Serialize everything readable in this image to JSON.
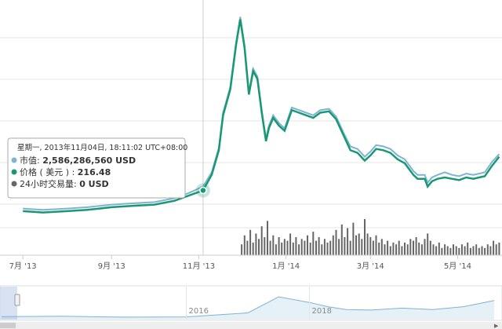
{
  "chart_data": {
    "type": "line",
    "title": "",
    "xlabel": "",
    "ylabel": "",
    "x_axis": {
      "ticks": [
        "7月 '13",
        "9月 '13",
        "11月 '13",
        "1月 '14",
        "3月 '14",
        "5月 '14"
      ]
    },
    "grid": true,
    "legend": "none",
    "series": [
      {
        "role": "market-cap",
        "color": "#7fb3d5",
        "points": [
          [
            "2013-07-01",
            0.36
          ],
          [
            "2013-07-15",
            0.35
          ],
          [
            "2013-08-01",
            0.36
          ],
          [
            "2013-08-15",
            0.37
          ],
          [
            "2013-09-01",
            0.39
          ],
          [
            "2013-09-15",
            0.4
          ],
          [
            "2013-10-01",
            0.41
          ],
          [
            "2013-10-15",
            0.44
          ],
          [
            "2013-10-25",
            0.48
          ],
          [
            "2013-11-04",
            0.53
          ],
          [
            "2013-11-10",
            0.64
          ],
          [
            "2013-11-15",
            0.83
          ],
          [
            "2013-11-18",
            1.1
          ],
          [
            "2013-11-20",
            1.18
          ],
          [
            "2013-11-23",
            1.3
          ],
          [
            "2013-11-27",
            1.64
          ],
          [
            "2013-11-30",
            1.84
          ],
          [
            "2013-12-03",
            1.62
          ],
          [
            "2013-12-06",
            1.26
          ],
          [
            "2013-12-09",
            1.44
          ],
          [
            "2013-12-12",
            1.38
          ],
          [
            "2013-12-15",
            1.12
          ],
          [
            "2013-12-18",
            0.9
          ],
          [
            "2013-12-20",
            1.0
          ],
          [
            "2013-12-23",
            1.08
          ],
          [
            "2013-12-27",
            1.02
          ],
          [
            "2013-12-31",
            0.98
          ],
          [
            "2014-01-05",
            1.14
          ],
          [
            "2014-01-10",
            1.12
          ],
          [
            "2014-01-15",
            1.1
          ],
          [
            "2014-01-20",
            1.08
          ],
          [
            "2014-01-25",
            1.12
          ],
          [
            "2014-01-31",
            1.13
          ],
          [
            "2014-02-05",
            1.07
          ],
          [
            "2014-02-10",
            0.95
          ],
          [
            "2014-02-15",
            0.84
          ],
          [
            "2014-02-20",
            0.82
          ],
          [
            "2014-02-25",
            0.76
          ],
          [
            "2014-03-01",
            0.8
          ],
          [
            "2014-03-05",
            0.85
          ],
          [
            "2014-03-10",
            0.84
          ],
          [
            "2014-03-15",
            0.82
          ],
          [
            "2014-03-20",
            0.77
          ],
          [
            "2014-03-25",
            0.74
          ],
          [
            "2014-03-31",
            0.65
          ],
          [
            "2014-04-03",
            0.62
          ],
          [
            "2014-04-08",
            0.62
          ],
          [
            "2014-04-10",
            0.56
          ],
          [
            "2014-04-13",
            0.6
          ],
          [
            "2014-04-17",
            0.62
          ],
          [
            "2014-04-22",
            0.64
          ],
          [
            "2014-04-27",
            0.62
          ],
          [
            "2014-05-02",
            0.61
          ],
          [
            "2014-05-07",
            0.63
          ],
          [
            "2014-05-12",
            0.62
          ],
          [
            "2014-05-16",
            0.63
          ],
          [
            "2014-05-20",
            0.64
          ],
          [
            "2014-05-25",
            0.72
          ],
          [
            "2014-05-30",
            0.78
          ]
        ]
      },
      {
        "role": "price",
        "color": "#1a9874",
        "points": [
          [
            "2013-07-01",
            0.34
          ],
          [
            "2013-07-15",
            0.33
          ],
          [
            "2013-08-01",
            0.34
          ],
          [
            "2013-08-15",
            0.35
          ],
          [
            "2013-09-01",
            0.37
          ],
          [
            "2013-09-15",
            0.38
          ],
          [
            "2013-10-01",
            0.39
          ],
          [
            "2013-10-15",
            0.42
          ],
          [
            "2013-10-25",
            0.46
          ],
          [
            "2013-11-04",
            0.5
          ],
          [
            "2013-11-10",
            0.62
          ],
          [
            "2013-11-15",
            0.81
          ],
          [
            "2013-11-18",
            1.08
          ],
          [
            "2013-11-20",
            1.16
          ],
          [
            "2013-11-23",
            1.28
          ],
          [
            "2013-11-27",
            1.62
          ],
          [
            "2013-11-30",
            1.82
          ],
          [
            "2013-12-03",
            1.6
          ],
          [
            "2013-12-06",
            1.24
          ],
          [
            "2013-12-09",
            1.42
          ],
          [
            "2013-12-12",
            1.36
          ],
          [
            "2013-12-15",
            1.1
          ],
          [
            "2013-12-18",
            0.88
          ],
          [
            "2013-12-20",
            0.98
          ],
          [
            "2013-12-23",
            1.06
          ],
          [
            "2013-12-27",
            1.0
          ],
          [
            "2013-12-31",
            0.96
          ],
          [
            "2014-01-05",
            1.12
          ],
          [
            "2014-01-10",
            1.1
          ],
          [
            "2014-01-15",
            1.08
          ],
          [
            "2014-01-20",
            1.06
          ],
          [
            "2014-01-25",
            1.1
          ],
          [
            "2014-01-31",
            1.11
          ],
          [
            "2014-02-05",
            1.05
          ],
          [
            "2014-02-10",
            0.93
          ],
          [
            "2014-02-15",
            0.81
          ],
          [
            "2014-02-20",
            0.79
          ],
          [
            "2014-02-25",
            0.73
          ],
          [
            "2014-03-01",
            0.77
          ],
          [
            "2014-03-05",
            0.82
          ],
          [
            "2014-03-10",
            0.81
          ],
          [
            "2014-03-15",
            0.79
          ],
          [
            "2014-03-20",
            0.74
          ],
          [
            "2014-03-25",
            0.71
          ],
          [
            "2014-03-31",
            0.62
          ],
          [
            "2014-04-03",
            0.59
          ],
          [
            "2014-04-08",
            0.59
          ],
          [
            "2014-04-10",
            0.53
          ],
          [
            "2014-04-13",
            0.57
          ],
          [
            "2014-04-17",
            0.59
          ],
          [
            "2014-04-22",
            0.6
          ],
          [
            "2014-04-27",
            0.59
          ],
          [
            "2014-05-02",
            0.58
          ],
          [
            "2014-05-07",
            0.6
          ],
          [
            "2014-05-12",
            0.59
          ],
          [
            "2014-05-16",
            0.6
          ],
          [
            "2014-05-20",
            0.61
          ],
          [
            "2014-05-25",
            0.69
          ],
          [
            "2014-05-30",
            0.76
          ]
        ]
      }
    ],
    "volume": {
      "color": "#666666",
      "points": [
        [
          "2013-12-01",
          0.3
        ],
        [
          "2013-12-03",
          0.55
        ],
        [
          "2013-12-05",
          0.4
        ],
        [
          "2013-12-07",
          0.7
        ],
        [
          "2013-12-09",
          0.35
        ],
        [
          "2013-12-11",
          0.6
        ],
        [
          "2013-12-13",
          0.45
        ],
        [
          "2013-12-15",
          0.8
        ],
        [
          "2013-12-17",
          0.5
        ],
        [
          "2013-12-19",
          0.95
        ],
        [
          "2013-12-21",
          0.4
        ],
        [
          "2013-12-23",
          0.55
        ],
        [
          "2013-12-25",
          0.3
        ],
        [
          "2013-12-27",
          0.5
        ],
        [
          "2013-12-29",
          0.35
        ],
        [
          "2013-12-31",
          0.45
        ],
        [
          "2014-01-02",
          0.4
        ],
        [
          "2014-01-04",
          0.6
        ],
        [
          "2014-01-06",
          0.35
        ],
        [
          "2014-01-08",
          0.5
        ],
        [
          "2014-01-10",
          0.3
        ],
        [
          "2014-01-12",
          0.45
        ],
        [
          "2014-01-14",
          0.4
        ],
        [
          "2014-01-16",
          0.55
        ],
        [
          "2014-01-18",
          0.35
        ],
        [
          "2014-01-20",
          0.65
        ],
        [
          "2014-01-22",
          0.4
        ],
        [
          "2014-01-24",
          0.5
        ],
        [
          "2014-01-26",
          0.3
        ],
        [
          "2014-01-28",
          0.45
        ],
        [
          "2014-01-30",
          0.35
        ],
        [
          "2014-02-01",
          0.4
        ],
        [
          "2014-02-03",
          0.55
        ],
        [
          "2014-02-05",
          0.7
        ],
        [
          "2014-02-07",
          0.45
        ],
        [
          "2014-02-09",
          0.85
        ],
        [
          "2014-02-11",
          0.5
        ],
        [
          "2014-02-13",
          0.75
        ],
        [
          "2014-02-15",
          0.4
        ],
        [
          "2014-02-17",
          0.9
        ],
        [
          "2014-02-19",
          0.55
        ],
        [
          "2014-02-21",
          0.6
        ],
        [
          "2014-02-23",
          0.45
        ],
        [
          "2014-02-25",
          1.0
        ],
        [
          "2014-02-27",
          0.6
        ],
        [
          "2014-03-01",
          0.5
        ],
        [
          "2014-03-03",
          0.4
        ],
        [
          "2014-03-05",
          0.55
        ],
        [
          "2014-03-07",
          0.35
        ],
        [
          "2014-03-09",
          0.45
        ],
        [
          "2014-03-11",
          0.3
        ],
        [
          "2014-03-13",
          0.4
        ],
        [
          "2014-03-15",
          0.25
        ],
        [
          "2014-03-17",
          0.35
        ],
        [
          "2014-03-19",
          0.3
        ],
        [
          "2014-03-21",
          0.4
        ],
        [
          "2014-03-23",
          0.25
        ],
        [
          "2014-03-25",
          0.35
        ],
        [
          "2014-03-27",
          0.3
        ],
        [
          "2014-03-29",
          0.45
        ],
        [
          "2014-03-31",
          0.4
        ],
        [
          "2014-04-02",
          0.5
        ],
        [
          "2014-04-04",
          0.35
        ],
        [
          "2014-04-06",
          0.3
        ],
        [
          "2014-04-08",
          0.45
        ],
        [
          "2014-04-10",
          0.6
        ],
        [
          "2014-04-12",
          0.4
        ],
        [
          "2014-04-14",
          0.3
        ],
        [
          "2014-04-16",
          0.25
        ],
        [
          "2014-04-18",
          0.35
        ],
        [
          "2014-04-20",
          0.2
        ],
        [
          "2014-04-22",
          0.3
        ],
        [
          "2014-04-24",
          0.25
        ],
        [
          "2014-04-26",
          0.2
        ],
        [
          "2014-04-28",
          0.3
        ],
        [
          "2014-04-30",
          0.25
        ],
        [
          "2014-05-02",
          0.2
        ],
        [
          "2014-05-04",
          0.3
        ],
        [
          "2014-05-06",
          0.25
        ],
        [
          "2014-05-08",
          0.35
        ],
        [
          "2014-05-10",
          0.2
        ],
        [
          "2014-05-12",
          0.25
        ],
        [
          "2014-05-14",
          0.3
        ],
        [
          "2014-05-16",
          0.2
        ],
        [
          "2014-05-18",
          0.25
        ],
        [
          "2014-05-20",
          0.2
        ],
        [
          "2014-05-22",
          0.3
        ],
        [
          "2014-05-24",
          0.25
        ],
        [
          "2014-05-26",
          0.4
        ],
        [
          "2014-05-28",
          0.3
        ],
        [
          "2014-05-30",
          0.35
        ]
      ]
    },
    "navigator": {
      "color": "#7fb3d5",
      "year_labels": [
        "2016",
        "2018"
      ],
      "points": [
        [
          "2013",
          0.05
        ],
        [
          "2014",
          0.06
        ],
        [
          "2015",
          0.03
        ],
        [
          "2016",
          0.04
        ],
        [
          "2017",
          0.18
        ],
        [
          "2017.5",
          0.75
        ],
        [
          "2018",
          0.55
        ],
        [
          "2018.3",
          0.4
        ],
        [
          "2018.6",
          0.3
        ],
        [
          "2019",
          0.28
        ],
        [
          "2019.5",
          0.35
        ],
        [
          "2020",
          0.3
        ],
        [
          "2020.5",
          0.4
        ],
        [
          "2021",
          0.62
        ]
      ]
    }
  },
  "tooltip": {
    "date": "星期一, 2013年11月04日, 18:11:02 UTC+08:00",
    "rows": [
      {
        "label": "市值: ",
        "value": "2,586,286,560 USD",
        "color": "#7fb3d5"
      },
      {
        "label": "价格 ( 美元 ) : ",
        "value": "216.48",
        "color": "#1a9874"
      },
      {
        "label": "24小时交易量: ",
        "value": "0 USD",
        "color": "#666666"
      }
    ]
  }
}
